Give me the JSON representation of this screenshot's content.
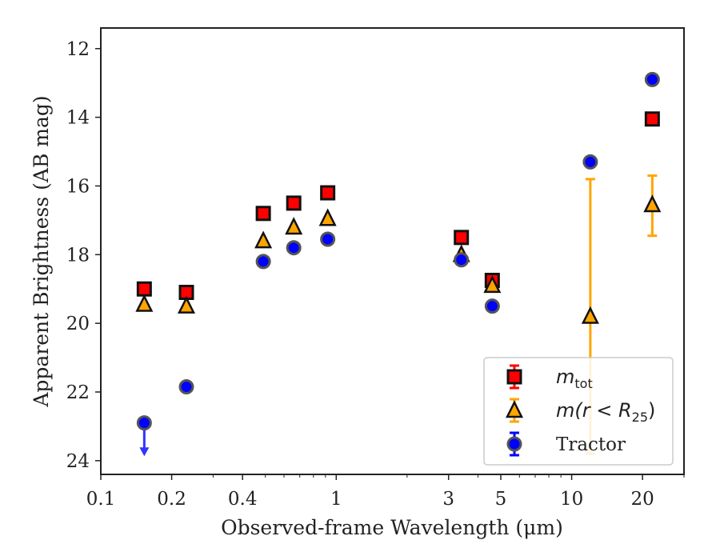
{
  "chart_data": {
    "type": "scatter",
    "xlabel": "Observed-frame Wavelength (μm)",
    "ylabel": "Apparent Brightness (AB mag)",
    "x_scale": "log",
    "xlim": [
      0.1,
      30
    ],
    "ylim": [
      24.4,
      11.4
    ],
    "y_inverted": true,
    "x_ticks": [
      0.1,
      0.2,
      0.4,
      1,
      3,
      5,
      10,
      20
    ],
    "x_tick_labels": [
      "0.1",
      "0.2",
      "0.4",
      "1",
      "3",
      "5",
      "10",
      "20"
    ],
    "y_ticks": [
      12,
      14,
      16,
      18,
      20,
      22,
      24
    ],
    "y_tick_labels": [
      "12",
      "14",
      "16",
      "18",
      "20",
      "22",
      "24"
    ],
    "grid": false,
    "legend_position": "lower-right",
    "legend": [
      {
        "label": "m",
        "subscript": "tot",
        "marker": "square",
        "color": "#ff0000",
        "errcolor": "#ff0000"
      },
      {
        "label": "m(r < R",
        "subscript": "25",
        "suffix": ")",
        "marker": "triangle",
        "color": "#ffa500",
        "errcolor": "#ffa500"
      },
      {
        "label": "Tractor",
        "marker": "circle",
        "color": "#0000ff",
        "errcolor": "#0000ff"
      }
    ],
    "series": [
      {
        "name": "m_tot",
        "marker": "square",
        "color": "#ff0000",
        "points": [
          {
            "x": 0.153,
            "y": 19.0
          },
          {
            "x": 0.231,
            "y": 19.1
          },
          {
            "x": 0.49,
            "y": 16.8
          },
          {
            "x": 0.66,
            "y": 16.5
          },
          {
            "x": 0.92,
            "y": 16.2
          },
          {
            "x": 3.4,
            "y": 17.5
          },
          {
            "x": 4.6,
            "y": 18.75
          },
          {
            "x": 22.0,
            "y": 14.05
          }
        ]
      },
      {
        "name": "m(r < R25)",
        "marker": "triangle",
        "color": "#ffa500",
        "errcolor": "#ffa500",
        "points": [
          {
            "x": 0.153,
            "y": 19.45
          },
          {
            "x": 0.231,
            "y": 19.5
          },
          {
            "x": 0.49,
            "y": 17.6
          },
          {
            "x": 0.66,
            "y": 17.2
          },
          {
            "x": 0.92,
            "y": 16.95
          },
          {
            "x": 3.4,
            "y": 18.0
          },
          {
            "x": 4.6,
            "y": 18.9
          },
          {
            "x": 12.0,
            "y": 19.8,
            "err_low": 15.8,
            "err_high": 23.8
          },
          {
            "x": 22.0,
            "y": 16.55,
            "err_low": 15.7,
            "err_high": 17.45
          }
        ]
      },
      {
        "name": "Tractor",
        "marker": "circle",
        "color": "#0000ff",
        "points": [
          {
            "x": 0.153,
            "y": 22.9,
            "upper_limit": true,
            "arrow_to": 23.8
          },
          {
            "x": 0.231,
            "y": 21.85
          },
          {
            "x": 0.49,
            "y": 18.2
          },
          {
            "x": 0.66,
            "y": 17.8
          },
          {
            "x": 0.92,
            "y": 17.55
          },
          {
            "x": 3.4,
            "y": 18.15
          },
          {
            "x": 4.6,
            "y": 19.5
          },
          {
            "x": 12.0,
            "y": 15.3
          },
          {
            "x": 22.0,
            "y": 12.9
          }
        ]
      }
    ]
  }
}
